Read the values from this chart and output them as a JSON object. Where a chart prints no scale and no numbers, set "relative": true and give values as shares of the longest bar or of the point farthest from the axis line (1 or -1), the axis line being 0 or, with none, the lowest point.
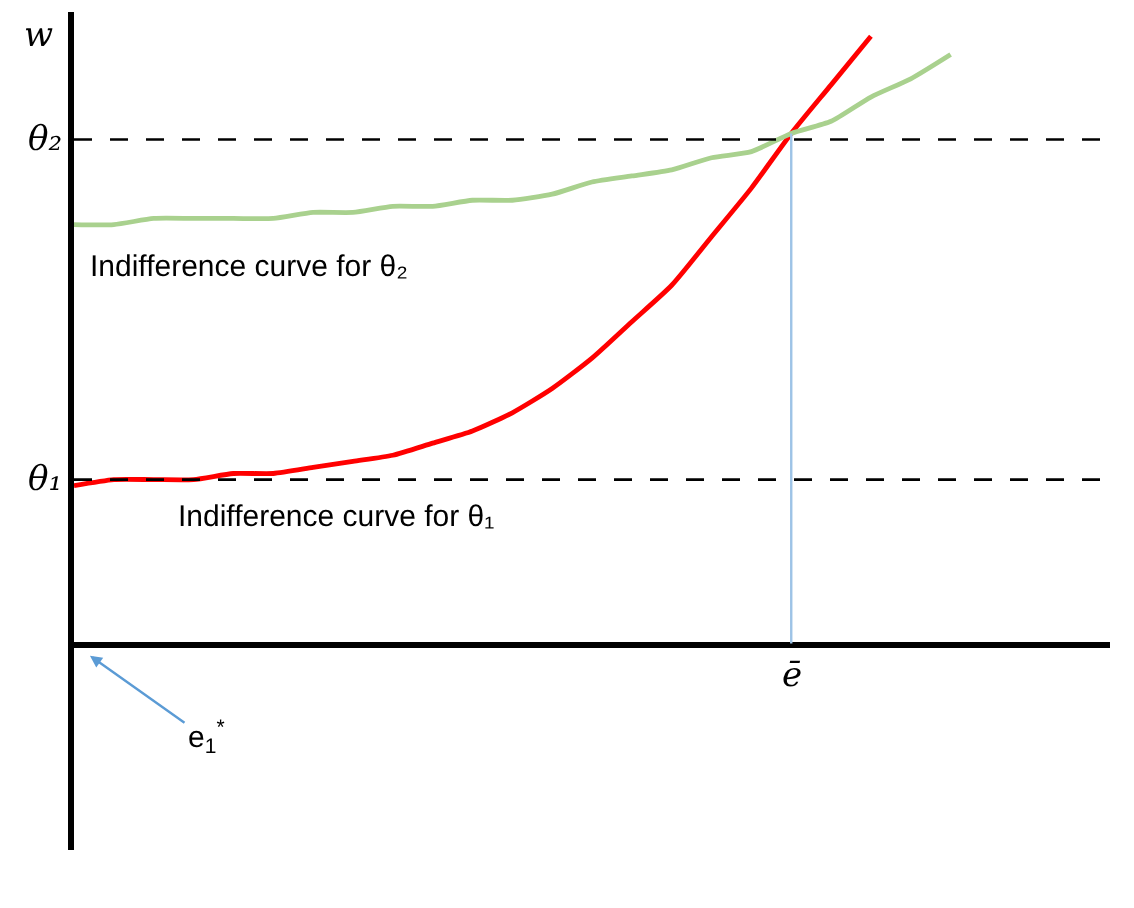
{
  "chart_data": {
    "type": "line",
    "relative": true,
    "ylabel": "w",
    "categories": [
      null,
      null,
      null,
      null,
      null,
      null,
      null,
      null,
      null,
      null,
      null,
      null,
      null,
      null,
      null,
      null,
      null,
      null,
      null,
      null,
      null,
      null,
      null,
      null,
      null,
      null,
      null
    ],
    "series": [
      {
        "color": "#ff0000",
        "values": [
          0.26,
          0.27,
          0.27,
          0.27,
          0.28,
          0.28,
          0.29,
          0.3,
          0.31,
          0.33,
          0.35,
          0.38,
          0.42,
          0.47,
          0.53,
          0.59,
          0.67,
          0.75,
          0.84,
          0.92,
          1,
          null,
          null,
          null,
          null,
          null,
          null
        ]
      },
      {
        "color": "#a9d18e",
        "values": [
          0.69,
          0.69,
          0.7,
          0.7,
          0.7,
          0.7,
          0.71,
          0.71,
          0.72,
          0.72,
          0.73,
          0.73,
          0.74,
          0.76,
          0.77,
          0.78,
          0.8,
          0.81,
          0.84,
          0.86,
          0.9,
          0.93,
          0.97,
          null,
          null,
          null,
          null
        ]
      }
    ],
    "ref_lines": [
      {
        "axis": "y",
        "value": 0.83,
        "label": "θ₂",
        "color": "#000000",
        "line_style": "dashed"
      },
      {
        "axis": "y",
        "value": 0.27,
        "label": "θ₁",
        "color": "#000000",
        "line_style": "dashed"
      }
    ],
    "annotations": [
      "Indifference curve for θ₂",
      "Indifference curve for θ₁",
      "e$_{1}$$^{*}$",
      "ē"
    ],
    "grid": false,
    "marker": "none",
    "line_style": "solid"
  }
}
